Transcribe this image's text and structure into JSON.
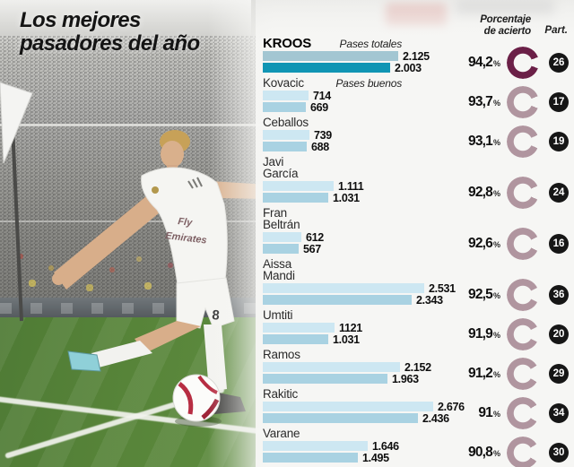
{
  "title": {
    "line1": "Los mejores",
    "line2": "pasadores del año"
  },
  "header": {
    "pct_line1": "Porcentaje",
    "pct_line2": "de acierto",
    "part_label": "Part."
  },
  "legend": {
    "totales": "Pases totales",
    "buenos": "Pases buenos"
  },
  "labels": {
    "pct_suffix": "%"
  },
  "photo": {
    "shirt_sponsor_line1": "Fly",
    "shirt_sponsor_line2": "Emirates",
    "shorts_number": "8"
  },
  "colors": {
    "bar_total": "#cde7f2",
    "bar_good": "#a9d2e2",
    "kroos_bar_total": "#a3c6d2",
    "kroos_bar_good": "#1095b4",
    "donut_dark": "#6b2047",
    "donut_light": "#b0959f",
    "badge_bg": "#161616",
    "pitch_green": "#578439",
    "red_accent": "#b72d42"
  },
  "chart_data": {
    "type": "bar",
    "orientation": "horizontal",
    "title": "Los mejores pasadores del año",
    "series_labels": [
      "Pases totales",
      "Pases buenos"
    ],
    "extra_columns": [
      "Porcentaje de acierto",
      "Part."
    ],
    "x_max_value": 2676,
    "players": [
      {
        "name": "KROOS",
        "pases_totales": 2125,
        "pases_buenos": 2003,
        "totales_label": "2.125",
        "buenos_label": "2.003",
        "pct": 94.2,
        "pct_label": "94,2",
        "part": 26,
        "highlight": true
      },
      {
        "name": "Kovacic",
        "pases_totales": 714,
        "pases_buenos": 669,
        "totales_label": "714",
        "buenos_label": "669",
        "pct": 93.7,
        "pct_label": "93,7",
        "part": 17,
        "highlight": false
      },
      {
        "name": "Ceballos",
        "pases_totales": 739,
        "pases_buenos": 688,
        "totales_label": "739",
        "buenos_label": "688",
        "pct": 93.1,
        "pct_label": "93,1",
        "part": 19,
        "highlight": false
      },
      {
        "name": "Javi García",
        "pases_totales": 1111,
        "pases_buenos": 1031,
        "totales_label": "1.111",
        "buenos_label": "1.031",
        "pct": 92.8,
        "pct_label": "92,8",
        "part": 24,
        "highlight": false
      },
      {
        "name": "Fran Beltrán",
        "pases_totales": 612,
        "pases_buenos": 567,
        "totales_label": "612",
        "buenos_label": "567",
        "pct": 92.6,
        "pct_label": "92,6",
        "part": 16,
        "highlight": false
      },
      {
        "name": "Aissa Mandi",
        "pases_totales": 2531,
        "pases_buenos": 2343,
        "totales_label": "2.531",
        "buenos_label": "2.343",
        "pct": 92.5,
        "pct_label": "92,5",
        "part": 36,
        "highlight": false
      },
      {
        "name": "Umtiti",
        "pases_totales": 1121,
        "pases_buenos": 1031,
        "totales_label": "1121",
        "buenos_label": "1.031",
        "pct": 91.9,
        "pct_label": "91,9",
        "part": 20,
        "highlight": false
      },
      {
        "name": "Ramos",
        "pases_totales": 2152,
        "pases_buenos": 1963,
        "totales_label": "2.152",
        "buenos_label": "1.963",
        "pct": 91.2,
        "pct_label": "91,2",
        "part": 29,
        "highlight": false
      },
      {
        "name": "Rakitic",
        "pases_totales": 2676,
        "pases_buenos": 2436,
        "totales_label": "2.676",
        "buenos_label": "2.436",
        "pct": 91.0,
        "pct_label": "91",
        "part": 34,
        "highlight": false
      },
      {
        "name": "Varane",
        "pases_totales": 1646,
        "pases_buenos": 1495,
        "totales_label": "1.646",
        "buenos_label": "1.495",
        "pct": 90.8,
        "pct_label": "90,8",
        "part": 30,
        "highlight": false
      }
    ]
  }
}
